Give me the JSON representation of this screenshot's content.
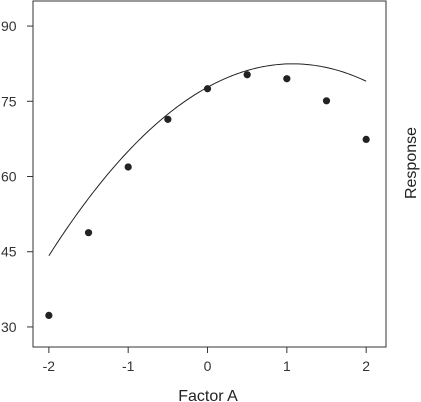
{
  "chart_data": {
    "type": "scatter",
    "title": "",
    "xlabel": "Factor A",
    "ylabel": "Response",
    "xlim": [
      -2.2,
      2.25
    ],
    "ylim": [
      26,
      95
    ],
    "x_ticks": [
      -2,
      -1,
      0,
      1,
      2
    ],
    "y_ticks": [
      30,
      45,
      60,
      75,
      90
    ],
    "x_tick_labels": [
      "-2",
      "-1",
      "0",
      "1",
      "2"
    ],
    "y_tick_labels": [
      "30",
      "45",
      "60",
      "75",
      "90"
    ],
    "grid": false,
    "legend": "none",
    "points": {
      "x": [
        -2,
        -1.5,
        -1,
        -0.5,
        0,
        0.5,
        1,
        1.5,
        2
      ],
      "y": [
        32.3,
        48.8,
        61.9,
        71.4,
        77.5,
        80.3,
        79.5,
        75.1,
        67.4
      ]
    },
    "fit_curve": {
      "type": "quadratic",
      "coefficients": {
        "a": -4.05,
        "b": 8.7,
        "c": 77.8
      }
    },
    "colors": {
      "points": "#222222",
      "curve": "#222222",
      "axis": "#333333"
    }
  }
}
